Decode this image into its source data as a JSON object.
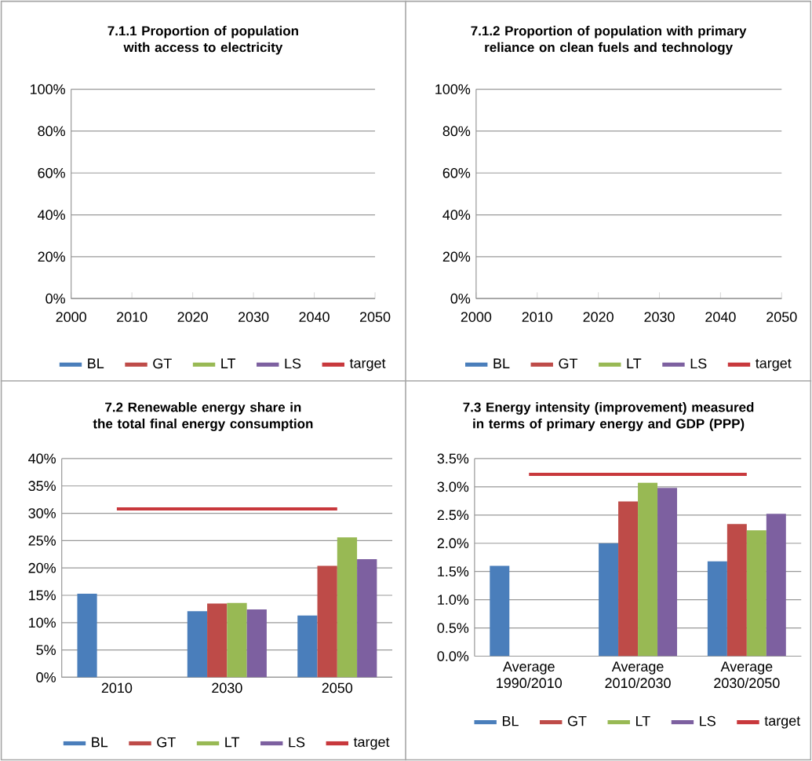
{
  "chart_data": [
    {
      "type": "line",
      "title": "7.1.1 Proportion of population with access to electricity",
      "categories": [
        "2000",
        "2010",
        "2020",
        "2030",
        "2040",
        "2050"
      ],
      "ylim": [
        0,
        100
      ],
      "yticks": [
        {
          "value": 0,
          "label": "0%"
        },
        {
          "value": 20,
          "label": "20%"
        },
        {
          "value": 40,
          "label": "40%"
        },
        {
          "value": 60,
          "label": "60%"
        },
        {
          "value": 80,
          "label": "80%"
        },
        {
          "value": 100,
          "label": "100%"
        }
      ],
      "grid": "y",
      "legend": "bottom",
      "series": [
        {
          "name": "BL",
          "color": "#4a7ebb",
          "values": [
            null,
            null,
            null,
            null,
            null,
            null
          ]
        },
        {
          "name": "GT",
          "color": "#be4b48",
          "values": [
            null,
            null,
            null,
            null,
            null,
            null
          ]
        },
        {
          "name": "LT",
          "color": "#98b954",
          "values": [
            null,
            null,
            null,
            null,
            null,
            null
          ]
        },
        {
          "name": "LS",
          "color": "#7d60a0",
          "values": [
            null,
            null,
            null,
            null,
            null,
            null
          ]
        },
        {
          "name": "target",
          "color": "#c8383c",
          "values": [
            null,
            null,
            null,
            null,
            null,
            null
          ]
        }
      ]
    },
    {
      "type": "line",
      "title": "7.1.2 Proportion of population with primary reliance on clean fuels and technology",
      "categories": [
        "2000",
        "2010",
        "2020",
        "2030",
        "2040",
        "2050"
      ],
      "ylim": [
        0,
        100
      ],
      "yticks": [
        {
          "value": 0,
          "label": "0%"
        },
        {
          "value": 20,
          "label": "20%"
        },
        {
          "value": 40,
          "label": "40%"
        },
        {
          "value": 60,
          "label": "60%"
        },
        {
          "value": 80,
          "label": "80%"
        },
        {
          "value": 100,
          "label": "100%"
        }
      ],
      "grid": "y",
      "legend": "bottom",
      "series": [
        {
          "name": "BL",
          "color": "#4a7ebb",
          "values": [
            null,
            null,
            null,
            null,
            null,
            null
          ]
        },
        {
          "name": "GT",
          "color": "#be4b48",
          "values": [
            null,
            null,
            null,
            null,
            null,
            null
          ]
        },
        {
          "name": "LT",
          "color": "#98b954",
          "values": [
            null,
            null,
            null,
            null,
            null,
            null
          ]
        },
        {
          "name": "LS",
          "color": "#7d60a0",
          "values": [
            null,
            null,
            null,
            null,
            null,
            null
          ]
        },
        {
          "name": "target",
          "color": "#c8383c",
          "values": [
            null,
            null,
            null,
            null,
            null,
            null
          ]
        }
      ]
    },
    {
      "type": "bar",
      "title": "7.2 Renewable energy share in the total final energy consumption",
      "categories": [
        "2010",
        "2030",
        "2050"
      ],
      "ylim": [
        0,
        40
      ],
      "yticks": [
        {
          "value": 0,
          "label": "0%"
        },
        {
          "value": 5,
          "label": "5%"
        },
        {
          "value": 10,
          "label": "10%"
        },
        {
          "value": 15,
          "label": "15%"
        },
        {
          "value": 20,
          "label": "20%"
        },
        {
          "value": 25,
          "label": "25%"
        },
        {
          "value": 30,
          "label": "30%"
        },
        {
          "value": 35,
          "label": "35%"
        },
        {
          "value": 40,
          "label": "40%"
        }
      ],
      "grid": "y",
      "legend": "bottom",
      "series": [
        {
          "name": "BL",
          "color": "#4a7ebb",
          "values": [
            15.3,
            12.1,
            11.3
          ]
        },
        {
          "name": "GT",
          "color": "#be4b48",
          "values": [
            null,
            13.5,
            20.4
          ]
        },
        {
          "name": "LT",
          "color": "#98b954",
          "values": [
            null,
            13.6,
            25.6
          ]
        },
        {
          "name": "LS",
          "color": "#7d60a0",
          "values": [
            null,
            12.4,
            21.6
          ]
        },
        {
          "name": "target",
          "color": "#c8383c",
          "type": "line",
          "values": [
            30.8,
            30.8,
            30.8
          ]
        }
      ]
    },
    {
      "type": "bar",
      "title": "7.3 Energy intensity (improvement) measured in terms of primary energy and GDP (PPP)",
      "categories": [
        "Average 1990/2010",
        "Average 2010/2030",
        "Average 2030/2050"
      ],
      "ylim": [
        0,
        3.5
      ],
      "yticks": [
        {
          "value": 0,
          "label": "0.0%"
        },
        {
          "value": 0.5,
          "label": "0.5%"
        },
        {
          "value": 1.0,
          "label": "1.0%"
        },
        {
          "value": 1.5,
          "label": "1.5%"
        },
        {
          "value": 2.0,
          "label": "2.0%"
        },
        {
          "value": 2.5,
          "label": "2.5%"
        },
        {
          "value": 3.0,
          "label": "3.0%"
        },
        {
          "value": 3.5,
          "label": "3.5%"
        }
      ],
      "grid": "y",
      "legend": "bottom",
      "series": [
        {
          "name": "BL",
          "color": "#4a7ebb",
          "values": [
            1.6,
            2.0,
            1.68
          ]
        },
        {
          "name": "GT",
          "color": "#be4b48",
          "values": [
            null,
            2.74,
            2.34
          ]
        },
        {
          "name": "LT",
          "color": "#98b954",
          "values": [
            null,
            3.07,
            2.23
          ]
        },
        {
          "name": "LS",
          "color": "#7d60a0",
          "values": [
            null,
            2.98,
            2.52
          ]
        },
        {
          "name": "target",
          "color": "#c8383c",
          "type": "line",
          "values": [
            3.22,
            3.22,
            3.22
          ]
        }
      ]
    }
  ]
}
